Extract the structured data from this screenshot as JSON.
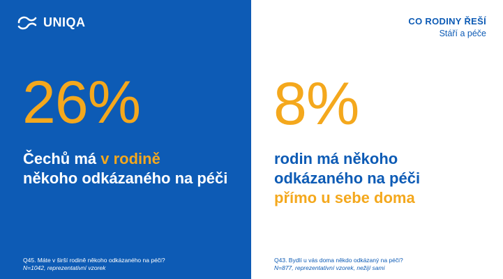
{
  "brand": {
    "logo_text": "UNIQA",
    "logo_icon": "uniqa-swirl-logo"
  },
  "header": {
    "section_title": "CO RODINY ŘEŠÍ",
    "section_subtitle": "Stáří a péče"
  },
  "colors": {
    "blue": "#0d5bb5",
    "orange": "#f4a81d",
    "white": "#ffffff"
  },
  "left": {
    "stat": "26%",
    "desc_part1": "Čechů má ",
    "desc_highlight": "v rodině",
    "desc_part2": "někoho odkázaného na péči",
    "footnote_question": "Q45. Máte v širší rodině někoho odkázaného na péči?",
    "footnote_sample": "N=1042, reprezentativní vzorek"
  },
  "right": {
    "stat": "8%",
    "desc_line1": "rodin má někoho",
    "desc_line2": "odkázaného na péči",
    "desc_highlight": "přímo u sebe doma",
    "footnote_question": "Q43. Bydlí u vás doma někdo odkázaný na péči?",
    "footnote_sample": "N=877, reprezentativní vzorek, nežijí sami"
  }
}
